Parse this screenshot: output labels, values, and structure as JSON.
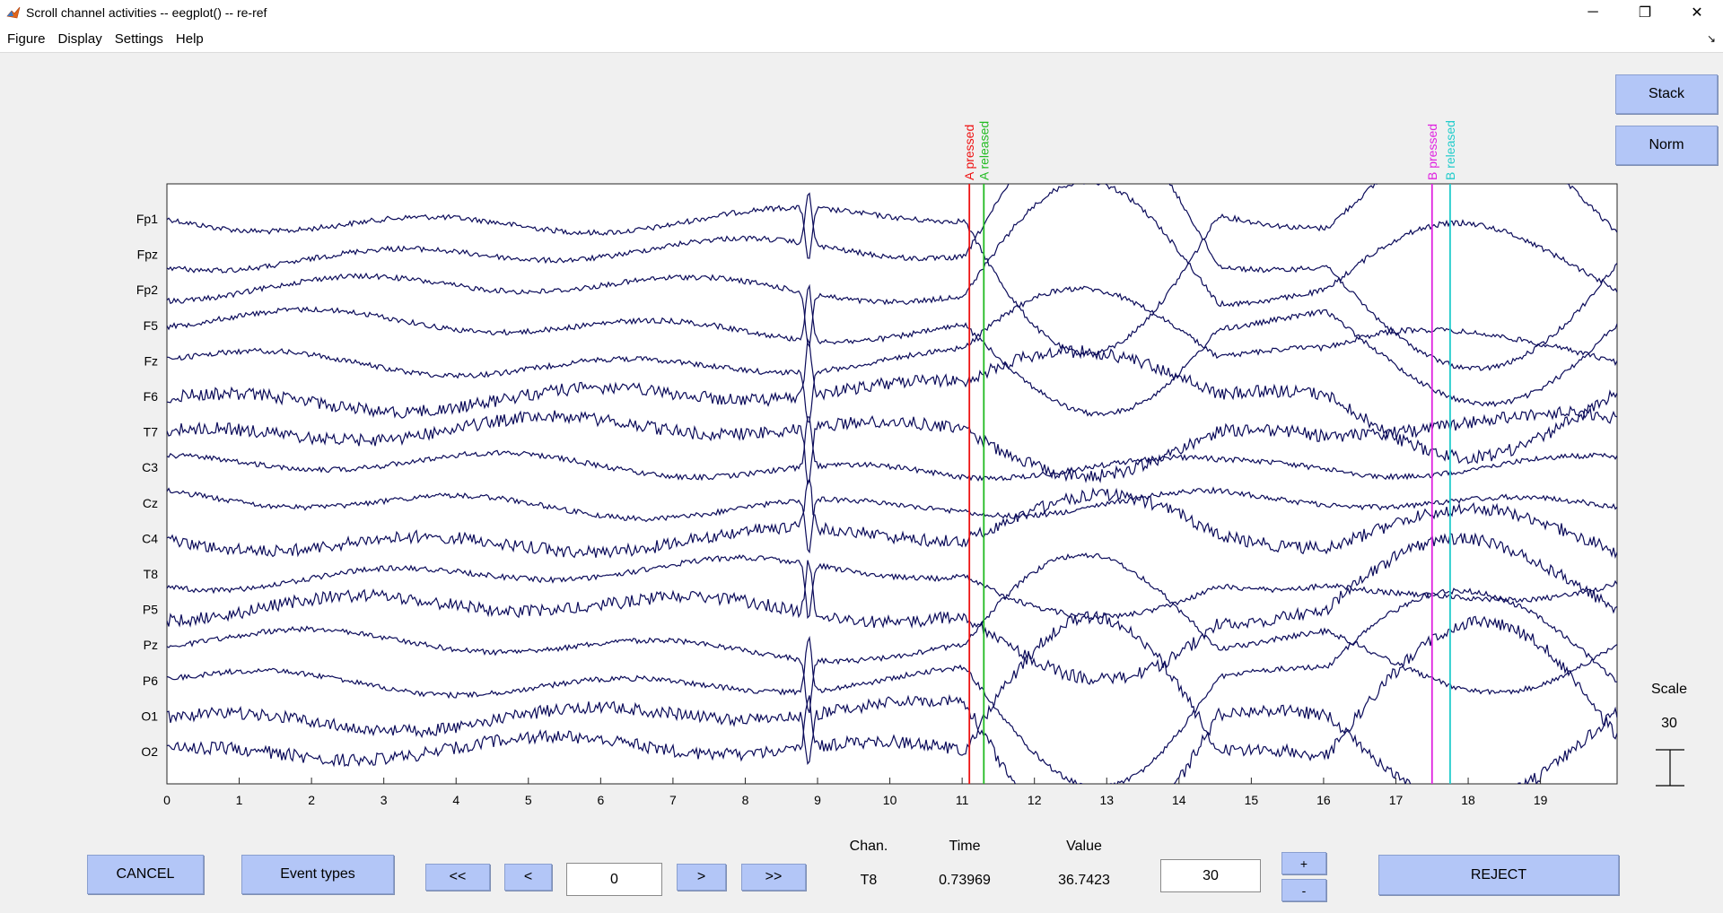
{
  "window": {
    "title": "Scroll channel activities -- eegplot() -- re-ref",
    "minimize_label": "─",
    "restore_label": "❐",
    "close_label": "✕"
  },
  "menu": {
    "items": [
      "Figure",
      "Display",
      "Settings",
      "Help"
    ],
    "dock_arrow": "↘"
  },
  "side": {
    "stack_label": "Stack",
    "norm_label": "Norm",
    "scale_title": "Scale",
    "scale_value": "30"
  },
  "bottom": {
    "cancel_label": "CANCEL",
    "event_types_label": "Event types",
    "first_label": "<<",
    "prev_label": "<",
    "position_value": "0",
    "next_label": ">",
    "last_label": ">>",
    "chan_header": "Chan.",
    "time_header": "Time",
    "value_header": "Value",
    "chan_value": "T8",
    "time_value": "0.73969",
    "value_value": "36.7423",
    "spacing_value": "30",
    "plus_label": "+",
    "minus_label": "-",
    "reject_label": "REJECT"
  },
  "colors": {
    "trace": "#0b0b5a",
    "button_bg": "#b3c6f7",
    "plot_bg": "#ffffff",
    "event_A_pressed": "#ee1111",
    "event_A_released": "#22bb22",
    "event_B_pressed": "#e022e0",
    "event_B_released": "#22cccc"
  },
  "chart_data": {
    "type": "line",
    "channels": [
      "Fp1",
      "Fpz",
      "Fp2",
      "F5",
      "Fz",
      "F6",
      "T7",
      "C3",
      "Cz",
      "C4",
      "T8",
      "P5",
      "Pz",
      "P6",
      "O1",
      "O2"
    ],
    "x_ticks": [
      0,
      1,
      2,
      3,
      4,
      5,
      6,
      7,
      8,
      9,
      10,
      11,
      12,
      13,
      14,
      15,
      16,
      17,
      18,
      19
    ],
    "xlim": [
      0,
      20
    ],
    "grid": false,
    "events": [
      {
        "label": "A pressed",
        "time": 11.1,
        "color": "#ee1111"
      },
      {
        "label": "A released",
        "time": 11.3,
        "color": "#22bb22"
      },
      {
        "label": "B pressed",
        "time": 17.5,
        "color": "#e022e0"
      },
      {
        "label": "B released",
        "time": 17.75,
        "color": "#22cccc"
      }
    ]
  }
}
